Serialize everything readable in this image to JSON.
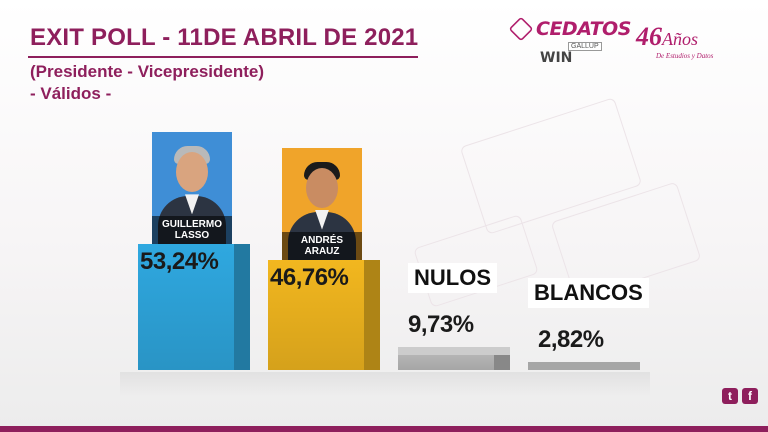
{
  "header": {
    "title": "EXIT POLL - 11DE ABRIL DE 2021",
    "subtitle": "(Presidente - Vicepresidente)",
    "subtitle2": "- Válidos -"
  },
  "brand": {
    "name": "CEDATOS",
    "partner1": "WIN",
    "partner2": "GALLUP",
    "anniversary_number": "46",
    "anniversary_word": "Años",
    "anniversary_sub": "De Estudios y Datos"
  },
  "colors": {
    "accent": "#8e1f5c",
    "lasso": "#2fa8e0",
    "arauz": "#f2b71f",
    "nulos": "#bdbdbd",
    "blancos": "#9a9a9a"
  },
  "icons": [
    "twitter-icon",
    "facebook-icon"
  ],
  "social": {
    "twitter": "t",
    "facebook": "f"
  },
  "chart_data": {
    "type": "bar",
    "categories": [
      "GUILLERMO LASSO",
      "ANDRÉS ARAUZ",
      "NULOS",
      "BLANCOS"
    ],
    "values": [
      53.24,
      46.76,
      9.73,
      2.82
    ],
    "value_labels": [
      "53,24%",
      "46,76%",
      "9,73%",
      "2,82%"
    ],
    "candidates": [
      {
        "first": "GUILLERMO",
        "last": "LASSO"
      },
      {
        "first": "ANDRÉS",
        "last": "ARAUZ"
      }
    ],
    "title": "EXIT POLL - 11DE ABRIL DE 2021",
    "xlabel": "",
    "ylabel": "",
    "grid": false,
    "legend": "none"
  }
}
